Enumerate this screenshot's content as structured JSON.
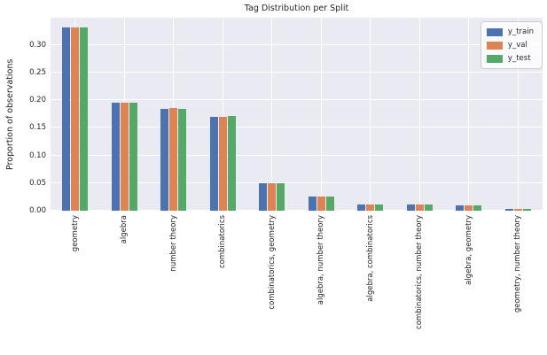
{
  "chart_data": {
    "type": "bar",
    "title": "Tag Distribution per Split",
    "xlabel": "",
    "ylabel": "Proportion of observations",
    "categories": [
      "geometry",
      "algebra",
      "number theory",
      "combinatorics",
      "combinatorics, geometry",
      "algebra, number theory",
      "algebra, combinatorics",
      "combinatorics, number theory",
      "algebra, geometry",
      "geometry, number theory"
    ],
    "series": [
      {
        "name": "y_train",
        "color": "#4C72B0",
        "values": [
          0.331,
          0.195,
          0.184,
          0.17,
          0.05,
          0.025,
          0.011,
          0.011,
          0.01,
          0.004
        ]
      },
      {
        "name": "y_val",
        "color": "#DD8452",
        "values": [
          0.331,
          0.195,
          0.186,
          0.17,
          0.05,
          0.025,
          0.011,
          0.011,
          0.01,
          0.004
        ]
      },
      {
        "name": "y_test",
        "color": "#55A868",
        "values": [
          0.331,
          0.195,
          0.184,
          0.171,
          0.05,
          0.025,
          0.011,
          0.011,
          0.01,
          0.004
        ]
      }
    ],
    "ylim": [
      0,
      0.349
    ],
    "yticks": [
      0.0,
      0.05,
      0.1,
      0.15,
      0.2,
      0.25,
      0.3
    ],
    "ytick_labels": [
      "0.00",
      "0.05",
      "0.10",
      "0.15",
      "0.20",
      "0.25",
      "0.30"
    ],
    "grid": true,
    "legend_position": "upper right",
    "colors": {
      "plot_background": "#EAEAF2",
      "gridline": "#FFFFFF",
      "text": "#262626",
      "legend_border": "#CCCCCC"
    }
  }
}
